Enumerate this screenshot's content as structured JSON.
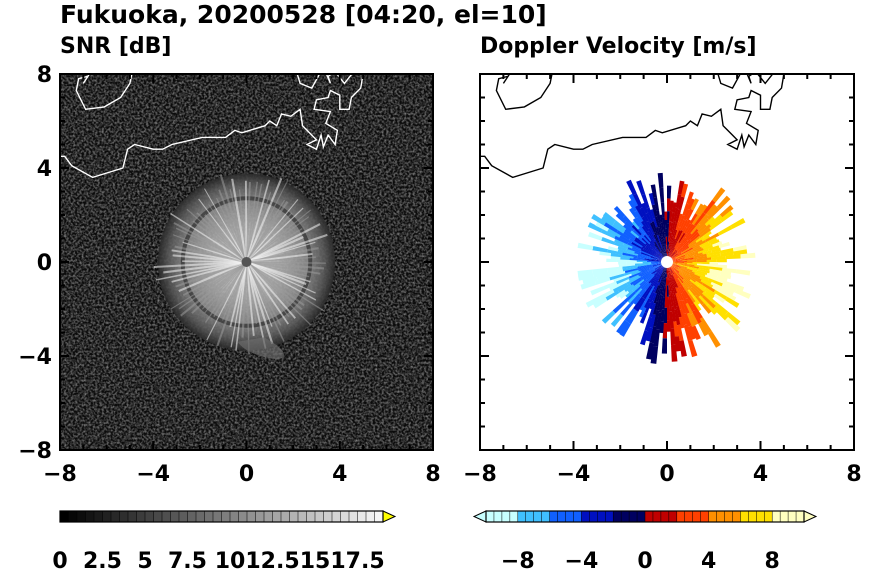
{
  "header": {
    "title": "Fukuoka, 20200528 [04:20, el=10]"
  },
  "chart_data": [
    {
      "type": "heatmap",
      "title": "SNR [dB]",
      "xlim": [
        -8,
        8
      ],
      "ylim": [
        -8,
        8
      ],
      "x_ticks": [
        "−8",
        "−4",
        "0",
        "4",
        "8"
      ],
      "y_ticks": [
        "8",
        "4",
        "0",
        "−4",
        "−8"
      ],
      "colorbar": {
        "range": [
          0,
          19
        ],
        "extend": "max",
        "tick_labels": [
          "0",
          "2.5",
          "5",
          "7.5",
          "10",
          "12.5",
          "15",
          "17.5"
        ],
        "tick_values": [
          0,
          2.5,
          5,
          7.5,
          10,
          12.5,
          15,
          17.5
        ],
        "colors": [
          "#000000",
          "#ffffff",
          "#ffff00"
        ]
      },
      "echo": {
        "center": [
          0,
          0
        ],
        "radius_km": 3.8,
        "background": "#0a0a0a"
      }
    },
    {
      "type": "heatmap",
      "title": "Doppler Velocity [m/s]",
      "xlim": [
        -8,
        8
      ],
      "ylim": [
        -8,
        8
      ],
      "x_ticks": [
        "−8",
        "−4",
        "0",
        "4",
        "8"
      ],
      "y_ticks": [
        "8",
        "4",
        "0",
        "−4",
        "−8"
      ],
      "colorbar": {
        "range": [
          -10,
          10
        ],
        "extend": "both",
        "tick_labels": [
          "−8",
          "−4",
          "0",
          "4",
          "8"
        ],
        "tick_values": [
          -8,
          -4,
          0,
          4,
          8
        ],
        "colors": [
          "#c8ffff",
          "#40c0ff",
          "#1060ff",
          "#0010c0",
          "#000060",
          "#c00000",
          "#ff4000",
          "#ff9000",
          "#ffe000",
          "#ffffc0"
        ]
      },
      "echo": {
        "center": [
          0,
          0
        ],
        "radius_km": 3.6
      }
    }
  ]
}
